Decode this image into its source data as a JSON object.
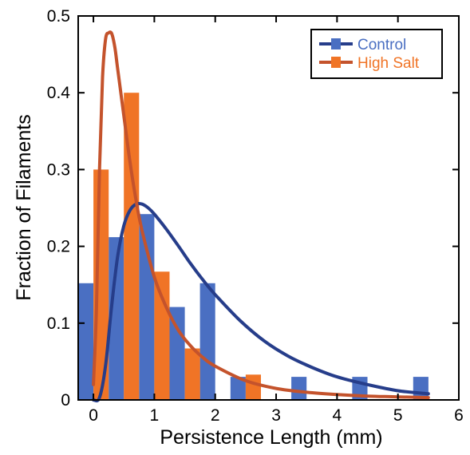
{
  "chart_data": {
    "type": "bar",
    "title": "",
    "xlabel": "Persistence Length (mm)",
    "ylabel": "Fraction of Filaments",
    "xlim": [
      -0.25,
      6
    ],
    "ylim": [
      0,
      0.5
    ],
    "x_ticks": [
      "0",
      "1",
      "2",
      "3",
      "4",
      "5",
      "6"
    ],
    "y_ticks": [
      "0",
      "0.1",
      "0.2",
      "0.3",
      "0.4",
      "0.5"
    ],
    "grid": false,
    "legend": "top-right",
    "bins": [
      0,
      0.5,
      1,
      1.5,
      2,
      2.5,
      3,
      3.5,
      4,
      4.5,
      5,
      5.5
    ],
    "series": [
      {
        "name": "Control",
        "color": "#4a6fc2",
        "values": [
          0.152,
          0.212,
          0.242,
          0.121,
          0.152,
          0.03,
          0,
          0.03,
          0,
          0.03,
          0,
          0.03
        ]
      },
      {
        "name": "High Salt",
        "color": "#f07426",
        "values": [
          0.3,
          0.4,
          0.167,
          0.067,
          0,
          0.033,
          0,
          0,
          0,
          0,
          0,
          0
        ]
      }
    ],
    "fit_curves": [
      {
        "name": "Control",
        "color": "#263d8a",
        "x": [
          0,
          0.1,
          0.2,
          0.3,
          0.4,
          0.5,
          0.6,
          0.7,
          0.8,
          0.9,
          1.0,
          1.2,
          1.4,
          1.6,
          1.8,
          2.0,
          2.4,
          2.8,
          3.2,
          3.6,
          4.0,
          4.5,
          5.0,
          5.5
        ],
        "y": [
          0,
          0.003,
          0.045,
          0.123,
          0.188,
          0.227,
          0.247,
          0.255,
          0.255,
          0.25,
          0.242,
          0.222,
          0.2,
          0.177,
          0.156,
          0.137,
          0.104,
          0.077,
          0.057,
          0.042,
          0.03,
          0.02,
          0.012,
          0.008
        ]
      },
      {
        "name": "High Salt",
        "color": "#c4532c",
        "x": [
          0,
          0.05,
          0.1,
          0.15,
          0.2,
          0.25,
          0.3,
          0.35,
          0.4,
          0.5,
          0.6,
          0.7,
          0.8,
          1.0,
          1.2,
          1.4,
          1.6,
          1.8,
          2.0,
          2.5,
          3.0,
          3.5,
          4.0,
          4.5,
          5.0,
          5.5
        ],
        "y": [
          0.02,
          0.12,
          0.3,
          0.42,
          0.47,
          0.478,
          0.477,
          0.46,
          0.43,
          0.37,
          0.31,
          0.26,
          0.22,
          0.16,
          0.12,
          0.09,
          0.07,
          0.055,
          0.044,
          0.025,
          0.015,
          0.01,
          0.007,
          0.005,
          0.004,
          0.003
        ]
      }
    ]
  }
}
